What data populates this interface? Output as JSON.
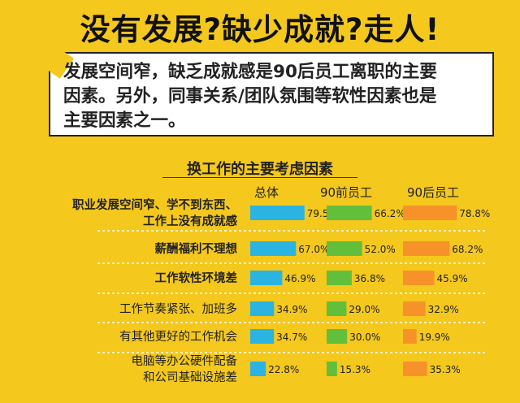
{
  "headline": "没有发展?缺少成就?走人!",
  "intro": [
    "发展空间窄，缺乏成就感是90后员工离职的主要",
    "因素。另外，同事关系/团队氛围等软性因素也是",
    "主要因素之一。"
  ],
  "colors": {
    "background": "#f4c81c",
    "series": [
      "#2bb3e2",
      "#62bf3c",
      "#f7922b"
    ]
  },
  "chart_data": {
    "type": "bar",
    "title": "换工作的主要考虑因素",
    "series": [
      {
        "name": "总体",
        "values": [
          79.5,
          67.0,
          46.9,
          34.9,
          34.7,
          22.8
        ],
        "labels": [
          "79.5%",
          "67.0%",
          "46.9%",
          "34.9%",
          "34.7%",
          "22.8%"
        ]
      },
      {
        "name": "90前员工",
        "values": [
          66.2,
          52.0,
          36.8,
          29.0,
          30.0,
          15.3
        ],
        "labels": [
          "66.2%",
          "52.0%",
          "36.8%",
          "29.0%",
          "30.0%",
          "15.3%"
        ]
      },
      {
        "name": "90后员工",
        "values": [
          78.8,
          68.2,
          45.9,
          32.9,
          19.9,
          35.3
        ],
        "labels": [
          "78.8%",
          "68.2%",
          "45.9%",
          "32.9%",
          "19.9%",
          "35.3%"
        ]
      }
    ],
    "categories": [
      {
        "lines": [
          "职业发展空间窄、学不到东西、",
          "工作上没有成就感"
        ],
        "bold": true
      },
      {
        "lines": [
          "薪酬福利不理想"
        ],
        "bold": true
      },
      {
        "lines": [
          "工作软性环境差"
        ],
        "bold": true
      },
      {
        "lines": [
          "工作节奏紧张、加班多"
        ],
        "bold": false
      },
      {
        "lines": [
          "有其他更好的工作机会"
        ],
        "bold": false
      },
      {
        "lines": [
          "电脑等办公硬件配备",
          "和公司基础设施差"
        ],
        "bold": false
      }
    ],
    "value_max": 100
  }
}
